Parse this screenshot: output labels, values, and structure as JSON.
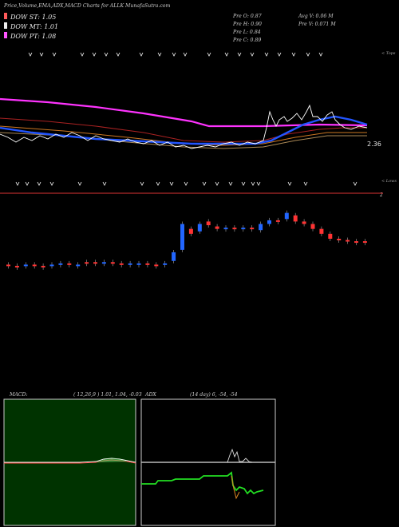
{
  "header": {
    "title": "Price,Volume,EMA,ADX,MACD Charts for ALLK MunafaSutra.com"
  },
  "dow": {
    "st": {
      "label": "DOW ST: 1.05",
      "color": "#ff5a5a"
    },
    "mt": {
      "label": "DOW MT: 1.01",
      "color": "#eeeeee"
    },
    "pt": {
      "label": "DOW PT: 1.08",
      "color": "#ff55ff"
    }
  },
  "stats": {
    "o": "Pre   O: 0.87",
    "h": "Pre   H: 0.90",
    "l": "Pre   L: 0.84",
    "c": "Pre   C: 0.89",
    "avgv": "Avg V: 0.06   M",
    "prev": "Pre   V: 0.071 M"
  },
  "price_axis": {
    "tops_label": "< Tops",
    "lows_label": "< Lows",
    "last_price": "2.36",
    "bottom_val": "2"
  },
  "macd_panel": {
    "label": "MACD:",
    "params": "( 12,26,9 ) 1.01, 1.04, -0.03"
  },
  "adx_panel": {
    "label": "ADX",
    "params": "(14  day) 6, -54, -54"
  },
  "chart_data": {
    "type": "line",
    "note_series": [
      {
        "values": [
          100,
          100,
          99,
          99,
          98,
          97,
          96,
          95,
          94,
          93,
          92,
          91,
          90,
          89,
          88,
          87,
          86,
          85,
          84,
          84,
          84,
          84,
          84,
          84,
          84,
          84,
          84,
          84,
          84,
          84,
          84,
          84,
          84,
          84,
          84,
          84,
          85,
          85,
          86,
          86
        ]
      },
      {
        "values": [
          60,
          62,
          63,
          65,
          66,
          66,
          67,
          68,
          68,
          69,
          69,
          69,
          70,
          70,
          70,
          70,
          70,
          70,
          70,
          70,
          69,
          70,
          70,
          70,
          70,
          70,
          69,
          69,
          68,
          67,
          68,
          69,
          72,
          76,
          80,
          84,
          86,
          85,
          84,
          85
        ]
      }
    ],
    "candles": [
      {
        "o": 0.41,
        "c": 0.4,
        "dir": "down"
      },
      {
        "o": 0.4,
        "c": 0.4,
        "dir": "down"
      },
      {
        "o": 0.4,
        "c": 0.41,
        "dir": "up"
      },
      {
        "o": 0.41,
        "c": 0.4,
        "dir": "down"
      },
      {
        "o": 0.4,
        "c": 0.4,
        "dir": "down"
      },
      {
        "o": 0.4,
        "c": 0.41,
        "dir": "up"
      },
      {
        "o": 0.41,
        "c": 0.42,
        "dir": "up"
      },
      {
        "o": 0.42,
        "c": 0.41,
        "dir": "down"
      },
      {
        "o": 0.41,
        "c": 0.41,
        "dir": "up"
      },
      {
        "o": 0.42,
        "c": 0.43,
        "dir": "down"
      },
      {
        "o": 0.43,
        "c": 0.42,
        "dir": "down"
      },
      {
        "o": 0.42,
        "c": 0.43,
        "dir": "up"
      },
      {
        "o": 0.43,
        "c": 0.42,
        "dir": "down"
      },
      {
        "o": 0.42,
        "c": 0.41,
        "dir": "down"
      },
      {
        "o": 0.41,
        "c": 0.42,
        "dir": "up"
      },
      {
        "o": 0.42,
        "c": 0.42,
        "dir": "up"
      },
      {
        "o": 0.42,
        "c": 0.41,
        "dir": "down"
      },
      {
        "o": 0.41,
        "c": 0.41,
        "dir": "down"
      },
      {
        "o": 0.41,
        "c": 0.42,
        "dir": "up"
      },
      {
        "o": 0.44,
        "c": 0.51,
        "dir": "up"
      },
      {
        "o": 0.53,
        "c": 0.74,
        "dir": "up"
      },
      {
        "o": 0.7,
        "c": 0.66,
        "dir": "down"
      },
      {
        "o": 0.68,
        "c": 0.74,
        "dir": "up"
      },
      {
        "o": 0.76,
        "c": 0.73,
        "dir": "down"
      },
      {
        "o": 0.72,
        "c": 0.7,
        "dir": "down"
      },
      {
        "o": 0.71,
        "c": 0.71,
        "dir": "up"
      },
      {
        "o": 0.71,
        "c": 0.7,
        "dir": "down"
      },
      {
        "o": 0.7,
        "c": 0.71,
        "dir": "up"
      },
      {
        "o": 0.71,
        "c": 0.7,
        "dir": "down"
      },
      {
        "o": 0.69,
        "c": 0.74,
        "dir": "up"
      },
      {
        "o": 0.74,
        "c": 0.77,
        "dir": "up"
      },
      {
        "o": 0.77,
        "c": 0.76,
        "dir": "down"
      },
      {
        "o": 0.78,
        "c": 0.83,
        "dir": "up"
      },
      {
        "o": 0.81,
        "c": 0.76,
        "dir": "down"
      },
      {
        "o": 0.76,
        "c": 0.74,
        "dir": "down"
      },
      {
        "o": 0.74,
        "c": 0.7,
        "dir": "down"
      },
      {
        "o": 0.7,
        "c": 0.66,
        "dir": "down"
      },
      {
        "o": 0.66,
        "c": 0.62,
        "dir": "down"
      },
      {
        "o": 0.62,
        "c": 0.61,
        "dir": "down"
      },
      {
        "o": 0.61,
        "c": 0.6,
        "dir": "down"
      },
      {
        "o": 0.6,
        "c": 0.6,
        "dir": "down"
      },
      {
        "o": 0.6,
        "c": 0.59,
        "dir": "down"
      }
    ],
    "macd": {
      "line": 1.01,
      "signal": 1.04,
      "histogram": -0.03,
      "params": [
        12,
        26,
        9
      ]
    },
    "adx": {
      "period": 14,
      "values": [
        6,
        -54,
        -54
      ]
    }
  }
}
